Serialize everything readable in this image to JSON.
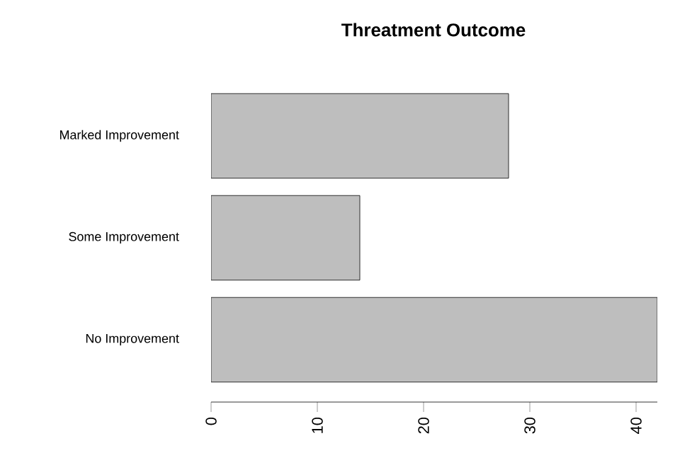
{
  "chart_data": {
    "type": "bar",
    "orientation": "horizontal",
    "title": "Threatment Outcome",
    "categories": [
      "Marked Improvement",
      "Some Improvement",
      "No Improvement"
    ],
    "values": [
      28,
      14,
      42
    ],
    "color": "#bebebe",
    "xlim": [
      0,
      42
    ],
    "xticks": [
      0,
      10,
      20,
      30,
      40
    ],
    "grid": false
  }
}
